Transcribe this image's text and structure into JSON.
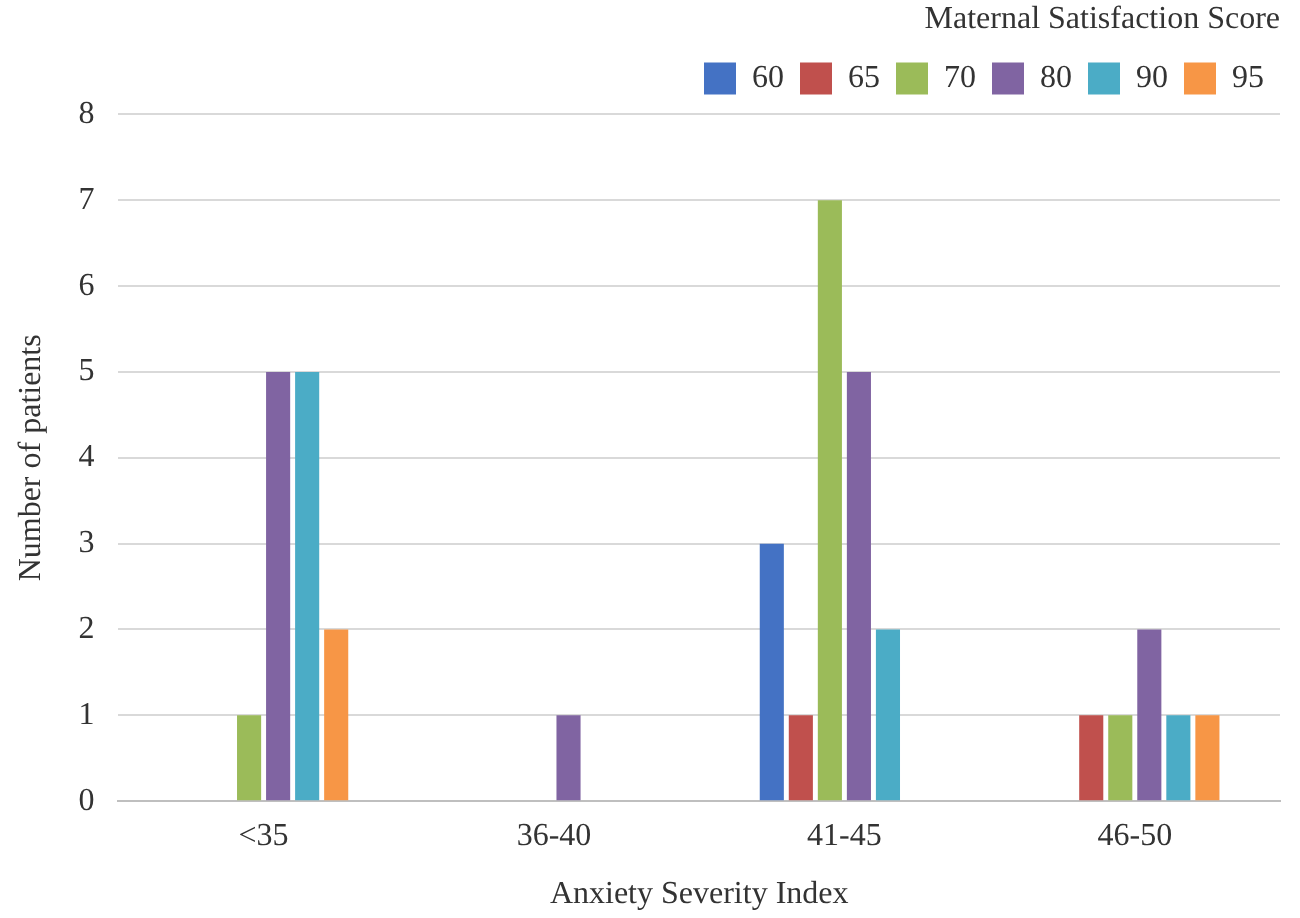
{
  "chart_data": {
    "type": "bar",
    "xlabel": "Anxiety Severity Index",
    "ylabel": "Number of patients",
    "legend_title": "Maternal Satisfaction Score",
    "categories": [
      "<35",
      "36-40",
      "41-45",
      "46-50"
    ],
    "series": [
      {
        "name": "60",
        "color": "#4472c4",
        "values": [
          0,
          0,
          3,
          0
        ]
      },
      {
        "name": "65",
        "color": "#c0504d",
        "values": [
          0,
          0,
          1,
          1
        ]
      },
      {
        "name": "70",
        "color": "#9bbb59",
        "values": [
          1,
          0,
          7,
          1
        ]
      },
      {
        "name": "80",
        "color": "#8064a2",
        "values": [
          5,
          1,
          5,
          2
        ]
      },
      {
        "name": "90",
        "color": "#4bacc6",
        "values": [
          5,
          0,
          2,
          1
        ]
      },
      {
        "name": "95",
        "color": "#f79646",
        "values": [
          2,
          0,
          0,
          1
        ]
      }
    ],
    "ylim": [
      0,
      8
    ],
    "yticks": [
      0,
      1,
      2,
      3,
      4,
      5,
      6,
      7,
      8
    ],
    "grid": "y",
    "legend": "top right"
  }
}
